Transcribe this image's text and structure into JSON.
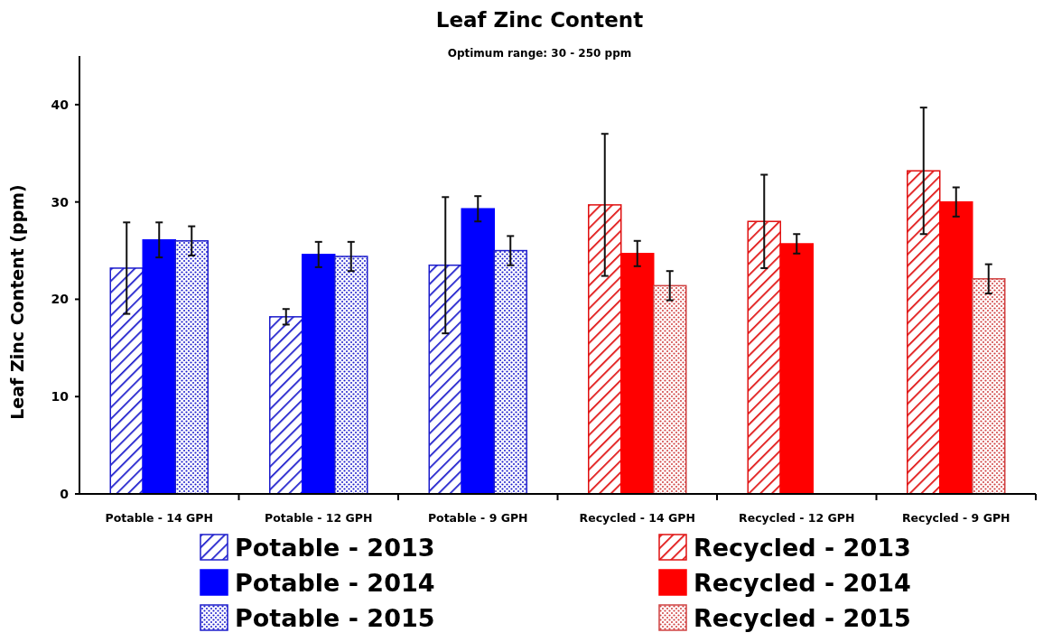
{
  "chart_data": {
    "type": "bar",
    "title": "Leaf Zinc Content",
    "subtitle": "Optimum range: 30 - 250 ppm",
    "ylabel": "Leaf Zinc Content (ppm)",
    "categories": [
      "Potable - 14 GPH",
      "Potable - 12 GPH",
      "Potable - 9 GPH",
      "Recycled - 14 GPH",
      "Recycled - 12 GPH",
      "Recycled - 9 GPH"
    ],
    "series": [
      {
        "name": "Potable - 2013",
        "color": "#1c1ccc",
        "values": [
          23.2,
          18.2,
          23.5,
          null,
          null,
          null
        ],
        "errors": [
          4.7,
          0.8,
          7.0,
          null,
          null,
          null
        ]
      },
      {
        "name": "Potable - 2014",
        "color": "#0000ff",
        "values": [
          26.1,
          24.6,
          29.3,
          null,
          null,
          null
        ],
        "errors": [
          1.8,
          1.3,
          1.3,
          null,
          null,
          null
        ]
      },
      {
        "name": "Potable - 2015",
        "color": "#1c1ccc",
        "values": [
          26.0,
          24.4,
          25.0,
          null,
          null,
          null
        ],
        "errors": [
          1.5,
          1.5,
          1.5,
          null,
          null,
          null
        ]
      },
      {
        "name": "Recycled - 2013",
        "color": "#e01010",
        "values": [
          null,
          null,
          null,
          29.7,
          28.0,
          33.2
        ],
        "errors": [
          null,
          null,
          null,
          7.3,
          4.8,
          6.5
        ]
      },
      {
        "name": "Recycled - 2014",
        "color": "#ff0000",
        "values": [
          null,
          null,
          null,
          24.7,
          25.7,
          30.0
        ],
        "errors": [
          null,
          null,
          null,
          1.3,
          1.0,
          1.5
        ]
      },
      {
        "name": "Recycled - 2015",
        "color": "#d04040",
        "values": [
          null,
          null,
          null,
          21.4,
          null,
          22.1
        ],
        "errors": [
          null,
          null,
          null,
          1.5,
          null,
          1.5
        ]
      }
    ],
    "ylim": [
      0,
      45
    ],
    "yticks": [
      0,
      10,
      20,
      30,
      40
    ],
    "grid": false,
    "legend": "bottom"
  }
}
